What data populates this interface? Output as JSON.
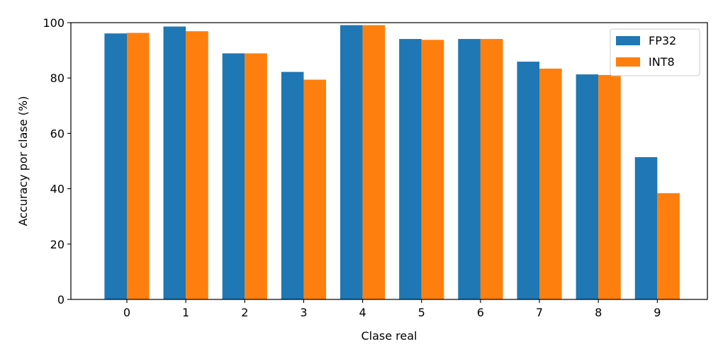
{
  "chart_data": {
    "type": "bar",
    "title": "",
    "xlabel": "Clase real",
    "ylabel": "Accuracy por clase (%)",
    "categories": [
      "0",
      "1",
      "2",
      "3",
      "4",
      "5",
      "6",
      "7",
      "8",
      "9"
    ],
    "series": [
      {
        "name": "FP32",
        "color": "#1f77b4",
        "values": [
          96.1,
          98.6,
          88.9,
          82.2,
          99.1,
          94.1,
          94.1,
          85.9,
          81.3,
          51.4
        ]
      },
      {
        "name": "INT8",
        "color": "#ff7f0e",
        "values": [
          96.3,
          96.9,
          88.9,
          79.4,
          99.1,
          93.8,
          94.1,
          83.4,
          81.1,
          38.4
        ]
      }
    ],
    "ylim": [
      0,
      100
    ],
    "yticks": [
      "0",
      "20",
      "40",
      "60",
      "80",
      "100"
    ],
    "grid": false,
    "legend_position": "top-right"
  }
}
